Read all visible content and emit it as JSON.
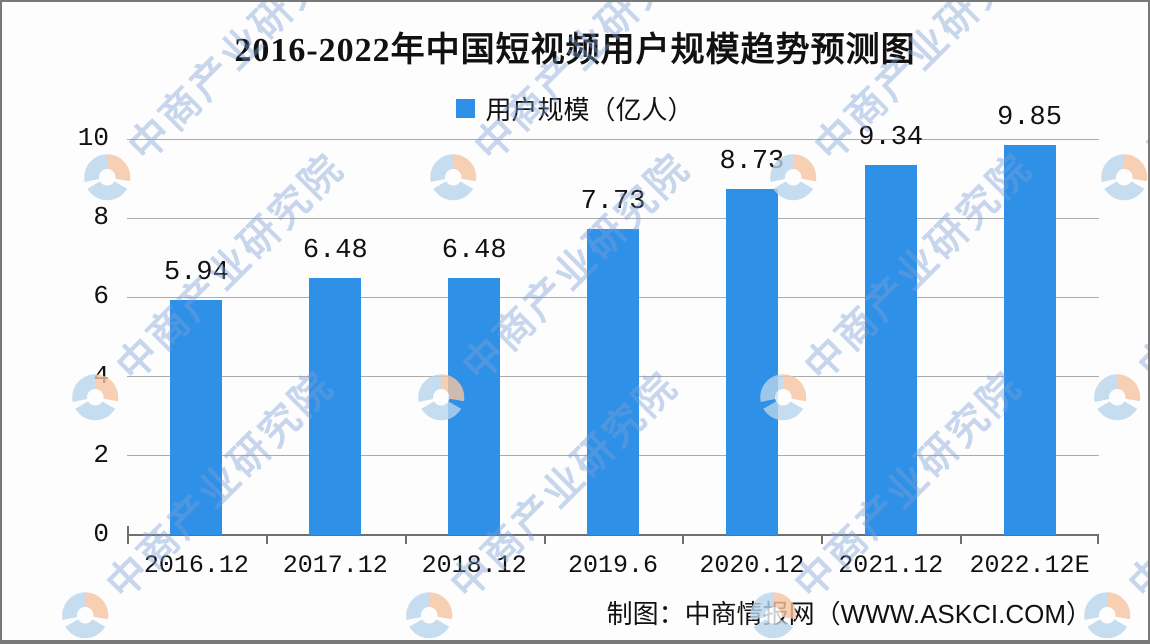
{
  "title": "2016-2022年中国短视频用户规模趋势预测图",
  "legend": {
    "label": "用户规模（亿人）",
    "swatch_color": "#2f90e8"
  },
  "chart_data": {
    "type": "bar",
    "title": "2016-2022年中国短视频用户规模趋势预测图",
    "categories": [
      "2016.12",
      "2017.12",
      "2018.12",
      "2019.6",
      "2020.12",
      "2021.12",
      "2022.12E"
    ],
    "values": [
      5.94,
      6.48,
      6.48,
      7.73,
      8.73,
      9.34,
      9.85
    ],
    "value_labels": [
      "5.94",
      "6.48",
      "6.48",
      "7.73",
      "8.73",
      "9.34",
      "9.85"
    ],
    "series_name": "用户规模（亿人）",
    "xlabel": "",
    "ylabel": "",
    "ylim": [
      0,
      10
    ],
    "yticks": [
      0,
      2,
      4,
      6,
      8,
      10
    ],
    "grid": true,
    "legend_position": "top-center",
    "bar_color": "#2f90e8"
  },
  "source_note": "制图：中商情报网（WWW.ASKCI.COM）",
  "watermark": {
    "text": "中商产业研究院",
    "text_color": "rgba(124,159,213,0.42)",
    "logo_blue": "#b9d4ec",
    "logo_orange": "#f6c6a2"
  },
  "colors": {
    "gridline": "#ababab",
    "axis": "#6f6f6f",
    "text": "#111111",
    "frame_border": "#787878",
    "background": "#fdfdfe"
  }
}
